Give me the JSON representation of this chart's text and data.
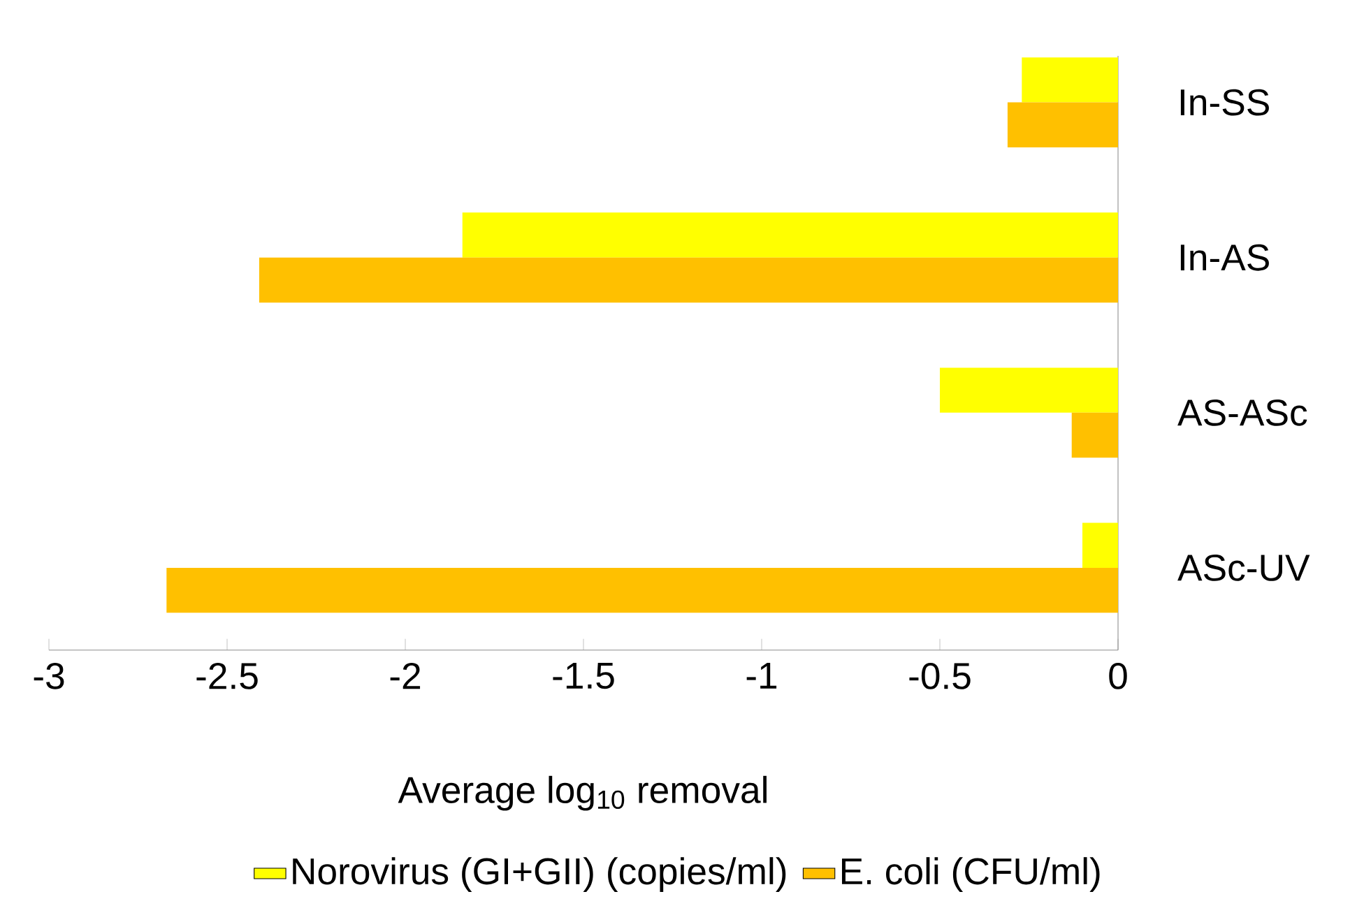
{
  "chart_data": {
    "type": "bar",
    "orientation": "horizontal",
    "categories": [
      "In-SS",
      "In-AS",
      "AS-ASc",
      "ASc-UV"
    ],
    "series": [
      {
        "name": "Norovirus (GI+GII)  (copies/ml)",
        "color": "#ffff00",
        "values": [
          -0.27,
          -1.84,
          -0.5,
          -0.1
        ]
      },
      {
        "name": "E. coli (CFU/ml)",
        "color": "#ffc000",
        "values": [
          -0.31,
          -2.41,
          -0.13,
          -2.67
        ]
      }
    ],
    "xlim": [
      -3,
      0
    ],
    "xticks": [
      -3,
      -2.5,
      -2,
      -1.5,
      -1,
      -0.5,
      0
    ],
    "xlabel": "Average log$_{10}$ removal",
    "legend": "bottom"
  }
}
